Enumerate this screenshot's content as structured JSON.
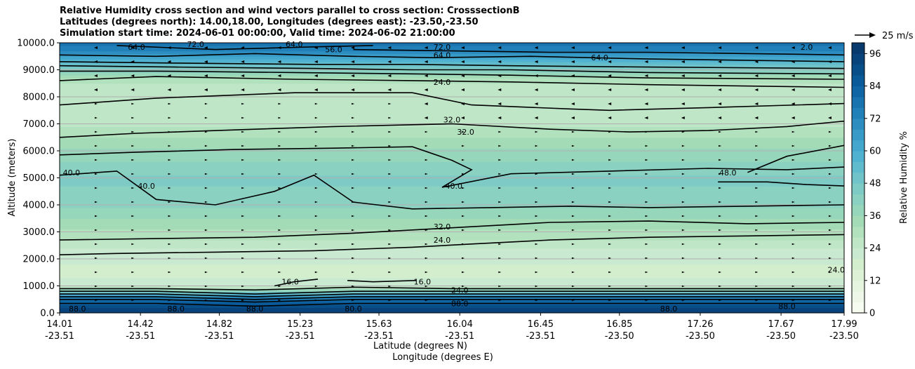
{
  "chart_data": {
    "type": "heatmap",
    "title_lines": [
      "Relative Humidity cross section and wind vectors parallel to cross section: CrosssectionB",
      "Latitudes (degrees north): 14.00,18.00, Longitudes (degrees east): -23.50,-23.50",
      "Simulation start time: 2024-06-01 00:00:00, Valid time: 2024-06-02 21:00:00"
    ],
    "ylabel": "Altitude (meters)",
    "xlabel_lat": "Latitude (degrees N)",
    "xlabel_lon": "Longitude (degrees E)",
    "ylim": [
      0,
      10000
    ],
    "yticks": [
      {
        "value": 0,
        "label": "0.0"
      },
      {
        "value": 1000,
        "label": "1000.0"
      },
      {
        "value": 2000,
        "label": "2000.0"
      },
      {
        "value": 3000,
        "label": "3000.0"
      },
      {
        "value": 4000,
        "label": "4000.0"
      },
      {
        "value": 5000,
        "label": "5000.0"
      },
      {
        "value": 6000,
        "label": "6000.0"
      },
      {
        "value": 7000,
        "label": "7000.0"
      },
      {
        "value": 8000,
        "label": "8000.0"
      },
      {
        "value": 9000,
        "label": "9000.0"
      },
      {
        "value": 10000,
        "label": "10000.0"
      }
    ],
    "xlim": [
      14.01,
      17.99
    ],
    "xticks": [
      {
        "lat": 14.01,
        "lat_label": "14.01",
        "lon_label": "-23.51"
      },
      {
        "lat": 14.42,
        "lat_label": "14.42",
        "lon_label": "-23.51"
      },
      {
        "lat": 14.82,
        "lat_label": "14.82",
        "lon_label": "-23.51"
      },
      {
        "lat": 15.23,
        "lat_label": "15.23",
        "lon_label": "-23.51"
      },
      {
        "lat": 15.63,
        "lat_label": "15.63",
        "lon_label": "-23.51"
      },
      {
        "lat": 16.04,
        "lat_label": "16.04",
        "lon_label": "-23.51"
      },
      {
        "lat": 16.45,
        "lat_label": "16.45",
        "lon_label": "-23.51"
      },
      {
        "lat": 16.85,
        "lat_label": "16.85",
        "lon_label": "-23.50"
      },
      {
        "lat": 17.26,
        "lat_label": "17.26",
        "lon_label": "-23.50"
      },
      {
        "lat": 17.67,
        "lat_label": "17.67",
        "lon_label": "-23.50"
      },
      {
        "lat": 17.99,
        "lat_label": "17.99",
        "lon_label": "-23.50"
      }
    ],
    "colorbar": {
      "label": "Relative Humidity %",
      "min": 0,
      "max": 100,
      "step": 4,
      "ticks": [
        {
          "value": 0,
          "label": "0"
        },
        {
          "value": 12,
          "label": "12"
        },
        {
          "value": 24,
          "label": "24"
        },
        {
          "value": 36,
          "label": "36"
        },
        {
          "value": 48,
          "label": "48"
        },
        {
          "value": 60,
          "label": "60"
        },
        {
          "value": 72,
          "label": "72"
        },
        {
          "value": 84,
          "label": "84"
        },
        {
          "value": 96,
          "label": "96"
        }
      ],
      "colors": [
        "#f7fcf0",
        "#eef8e8",
        "#e5f5df",
        "#dcf1d6",
        "#d3eecd",
        "#c9ead0",
        "#bfe6c6",
        "#b2e1be",
        "#a3dbb7",
        "#96d6bb",
        "#8bd1c2",
        "#7ecbc6",
        "#70c4c9",
        "#60bbcd",
        "#50b2d0",
        "#43a6cc",
        "#389ac6",
        "#2d8dc0",
        "#2280b9",
        "#1973af",
        "#1066a4",
        "#0a5a99",
        "#084f8a",
        "#08447b",
        "#083a6e"
      ]
    },
    "wind_key_label": "25 m/s",
    "contour_levels": [
      8,
      16,
      24,
      32,
      40,
      48,
      56,
      64,
      72,
      80,
      88,
      96
    ],
    "contours": [
      {
        "level": 24,
        "label": "24.0",
        "points": [
          [
            14.01,
            2150
          ],
          [
            14.3,
            2200
          ],
          [
            14.8,
            2250
          ],
          [
            15.3,
            2300
          ],
          [
            15.8,
            2430
          ],
          [
            16.1,
            2550
          ],
          [
            16.5,
            2700
          ],
          [
            17.0,
            2800
          ],
          [
            17.5,
            2850
          ],
          [
            17.99,
            2900
          ]
        ]
      },
      {
        "level": 32,
        "label": "32.0",
        "points": [
          [
            14.01,
            2700
          ],
          [
            14.5,
            2750
          ],
          [
            15.0,
            2800
          ],
          [
            15.5,
            2950
          ],
          [
            16.0,
            3150
          ],
          [
            16.5,
            3350
          ],
          [
            17.0,
            3400
          ],
          [
            17.5,
            3300
          ],
          [
            17.99,
            3350
          ]
        ]
      },
      {
        "level": 40,
        "label": "40.0",
        "points": [
          [
            14.01,
            5100
          ],
          [
            14.3,
            5250
          ],
          [
            14.5,
            4200
          ],
          [
            14.8,
            4000
          ],
          [
            15.1,
            4500
          ],
          [
            15.3,
            5100
          ],
          [
            15.5,
            4100
          ],
          [
            15.8,
            3850
          ],
          [
            16.2,
            3900
          ],
          [
            16.6,
            3950
          ],
          [
            17.0,
            3900
          ],
          [
            17.5,
            3950
          ],
          [
            17.99,
            4000
          ]
        ]
      },
      {
        "level": 40,
        "label": "40.0",
        "points": [
          [
            14.01,
            5850
          ],
          [
            14.4,
            5950
          ],
          [
            14.9,
            6050
          ],
          [
            15.4,
            6100
          ],
          [
            15.8,
            6150
          ],
          [
            16.0,
            5650
          ],
          [
            16.1,
            5300
          ],
          [
            15.95,
            4650
          ],
          [
            16.3,
            5150
          ],
          [
            16.8,
            5250
          ],
          [
            17.3,
            5350
          ],
          [
            17.7,
            5300
          ],
          [
            17.99,
            5400
          ]
        ]
      },
      {
        "level": 40,
        "label": "40.0",
        "points": [
          [
            17.35,
            4850
          ],
          [
            17.6,
            4850
          ],
          [
            17.8,
            4750
          ],
          [
            17.99,
            4700
          ]
        ]
      },
      {
        "level": 32,
        "label": "32.0",
        "points": [
          [
            14.01,
            6500
          ],
          [
            14.4,
            6650
          ],
          [
            15.0,
            6800
          ],
          [
            15.4,
            6900
          ],
          [
            16.0,
            7000
          ],
          [
            16.5,
            6800
          ],
          [
            16.9,
            6700
          ],
          [
            17.3,
            6750
          ],
          [
            17.7,
            6900
          ],
          [
            17.99,
            7100
          ]
        ]
      },
      {
        "level": 48,
        "label": "48.0",
        "points": [
          [
            17.5,
            5200
          ],
          [
            17.7,
            5800
          ],
          [
            17.99,
            6200
          ]
        ]
      },
      {
        "level": 32,
        "label": "32.0",
        "points": [
          [
            14.01,
            7700
          ],
          [
            14.5,
            7950
          ],
          [
            15.2,
            8150
          ],
          [
            15.8,
            8150
          ],
          [
            16.1,
            7700
          ],
          [
            16.6,
            7550
          ],
          [
            16.8,
            7500
          ],
          [
            17.3,
            7600
          ],
          [
            17.99,
            7750
          ]
        ]
      },
      {
        "level": 24,
        "label": "24.0",
        "points": [
          [
            14.01,
            8600
          ],
          [
            14.5,
            8750
          ],
          [
            15.2,
            8650
          ],
          [
            15.8,
            8600
          ],
          [
            16.3,
            8550
          ],
          [
            17.0,
            8450
          ],
          [
            17.99,
            8350
          ]
        ]
      },
      {
        "level": 32,
        "label": "32.0",
        "points": [
          [
            14.01,
            8950
          ],
          [
            14.5,
            8950
          ],
          [
            15.2,
            8900
          ],
          [
            15.8,
            8850
          ],
          [
            16.3,
            8800
          ],
          [
            17.0,
            8700
          ],
          [
            17.99,
            8650
          ]
        ]
      },
      {
        "level": 40,
        "label": "40.0",
        "points": [
          [
            14.01,
            9150
          ],
          [
            14.6,
            9100
          ],
          [
            15.3,
            9050
          ],
          [
            15.8,
            9000
          ],
          [
            16.3,
            9000
          ],
          [
            17.0,
            8900
          ],
          [
            17.99,
            8850
          ]
        ]
      },
      {
        "level": 48,
        "label": "48.0",
        "points": [
          [
            14.01,
            9300
          ],
          [
            14.6,
            9250
          ],
          [
            15.3,
            9200
          ],
          [
            15.8,
            9200
          ],
          [
            16.3,
            9150
          ],
          [
            17.0,
            9100
          ],
          [
            17.99,
            9050
          ]
        ]
      },
      {
        "level": 64,
        "label": "64.0",
        "points": [
          [
            14.01,
            9550
          ],
          [
            14.5,
            9500
          ],
          [
            15.0,
            9600
          ],
          [
            15.5,
            9500
          ],
          [
            15.9,
            9450
          ],
          [
            16.4,
            9500
          ],
          [
            17.0,
            9400
          ],
          [
            17.99,
            9300
          ]
        ]
      },
      {
        "level": 72,
        "label": "72.0",
        "points": [
          [
            15.5,
            9750
          ],
          [
            16.0,
            9700
          ],
          [
            16.5,
            9650
          ],
          [
            17.0,
            9650
          ],
          [
            17.5,
            9600
          ],
          [
            17.99,
            9550
          ]
        ]
      },
      {
        "level": 56,
        "label": "56.0",
        "points": [
          [
            14.3,
            9900
          ],
          [
            14.8,
            9750
          ],
          [
            15.3,
            9850
          ],
          [
            15.6,
            9900
          ]
        ]
      },
      {
        "level": 16,
        "label": "16.0",
        "points": [
          [
            15.47,
            1200
          ],
          [
            15.6,
            1150
          ],
          [
            15.82,
            1200
          ]
        ]
      },
      {
        "level": 16,
        "label": "16.0",
        "points": [
          [
            15.1,
            1000
          ],
          [
            15.2,
            1150
          ],
          [
            15.32,
            1250
          ]
        ]
      },
      {
        "level": 24,
        "label": "24.0",
        "points": [
          [
            14.01,
            900
          ],
          [
            14.5,
            900
          ],
          [
            15.0,
            850
          ],
          [
            15.5,
            950
          ],
          [
            16.0,
            900
          ],
          [
            16.5,
            900
          ],
          [
            17.0,
            900
          ],
          [
            17.99,
            900
          ]
        ]
      },
      {
        "level": 40,
        "label": "40.0",
        "points": [
          [
            14.01,
            800
          ],
          [
            14.5,
            800
          ],
          [
            15.0,
            700
          ],
          [
            15.5,
            800
          ],
          [
            16.0,
            800
          ],
          [
            16.5,
            800
          ],
          [
            17.0,
            800
          ],
          [
            17.99,
            800
          ]
        ]
      },
      {
        "level": 56,
        "label": "56.0",
        "points": [
          [
            14.01,
            700
          ],
          [
            14.5,
            700
          ],
          [
            15.0,
            600
          ],
          [
            15.5,
            700
          ],
          [
            16.0,
            700
          ],
          [
            16.5,
            700
          ],
          [
            17.0,
            700
          ],
          [
            17.99,
            700
          ]
        ]
      },
      {
        "level": 72,
        "label": "72.0",
        "points": [
          [
            14.01,
            600
          ],
          [
            14.5,
            600
          ],
          [
            15.0,
            500
          ],
          [
            15.5,
            600
          ],
          [
            16.0,
            600
          ],
          [
            16.5,
            600
          ],
          [
            17.0,
            600
          ],
          [
            17.99,
            600
          ]
        ]
      },
      {
        "level": 80,
        "label": "80.0",
        "points": [
          [
            14.01,
            500
          ],
          [
            14.5,
            500
          ],
          [
            15.0,
            400
          ],
          [
            15.5,
            500
          ],
          [
            16.0,
            500
          ],
          [
            16.5,
            500
          ],
          [
            17.0,
            500
          ],
          [
            17.99,
            500
          ]
        ]
      },
      {
        "level": 88,
        "label": "88.0",
        "points": [
          [
            14.01,
            350
          ],
          [
            14.5,
            350
          ],
          [
            15.0,
            250
          ],
          [
            15.5,
            350
          ],
          [
            16.0,
            350
          ],
          [
            16.5,
            350
          ],
          [
            17.0,
            350
          ],
          [
            17.99,
            350
          ]
        ]
      }
    ],
    "contour_labels": [
      {
        "text": "88.0",
        "lat": 14.1,
        "alt": 150
      },
      {
        "text": "88.0",
        "lat": 14.6,
        "alt": 150
      },
      {
        "text": "88.0",
        "lat": 15.0,
        "alt": 150
      },
      {
        "text": "16.0",
        "lat": 15.18,
        "alt": 1150
      },
      {
        "text": "80.0",
        "lat": 15.5,
        "alt": 150
      },
      {
        "text": "16.0",
        "lat": 15.85,
        "alt": 1150
      },
      {
        "text": "24.0",
        "lat": 16.04,
        "alt": 850
      },
      {
        "text": "88.0",
        "lat": 16.04,
        "alt": 350
      },
      {
        "text": "88.0",
        "lat": 17.1,
        "alt": 150
      },
      {
        "text": "88.0",
        "lat": 17.7,
        "alt": 250
      },
      {
        "text": "24.0",
        "lat": 15.95,
        "alt": 2700
      },
      {
        "text": "32.0",
        "lat": 15.95,
        "alt": 3200
      },
      {
        "text": "40.0",
        "lat": 14.07,
        "alt": 5200
      },
      {
        "text": "40.0",
        "lat": 14.45,
        "alt": 4700
      },
      {
        "text": "40.0",
        "lat": 16.01,
        "alt": 4700
      },
      {
        "text": "32.0",
        "lat": 16.0,
        "alt": 7150
      },
      {
        "text": "32.0",
        "lat": 16.07,
        "alt": 6700
      },
      {
        "text": "48.0",
        "lat": 17.4,
        "alt": 5200
      },
      {
        "text": "24.0",
        "lat": 17.95,
        "alt": 1600
      },
      {
        "text": "24.0",
        "lat": 15.95,
        "alt": 8550
      },
      {
        "text": "64.0",
        "lat": 15.95,
        "alt": 9550
      },
      {
        "text": "72.0",
        "lat": 15.95,
        "alt": 9850
      },
      {
        "text": "64.0",
        "lat": 16.75,
        "alt": 9450
      },
      {
        "text": "64.0",
        "lat": 14.4,
        "alt": 9850
      },
      {
        "text": "72.0",
        "lat": 14.7,
        "alt": 9950
      },
      {
        "text": "56.0",
        "lat": 15.4,
        "alt": 9750
      },
      {
        "text": "64.0",
        "lat": 15.2,
        "alt": 9950
      },
      {
        "text": "2.0",
        "lat": 17.8,
        "alt": 9850
      }
    ],
    "rh_profile": [
      {
        "alt": 0,
        "rh": 94
      },
      {
        "alt": 200,
        "rh": 92
      },
      {
        "alt": 400,
        "rh": 86
      },
      {
        "alt": 600,
        "rh": 70
      },
      {
        "alt": 800,
        "rh": 45
      },
      {
        "alt": 1000,
        "rh": 22
      },
      {
        "alt": 1500,
        "rh": 18
      },
      {
        "alt": 2000,
        "rh": 21
      },
      {
        "alt": 2500,
        "rh": 25
      },
      {
        "alt": 3000,
        "rh": 31
      },
      {
        "alt": 3500,
        "rh": 36
      },
      {
        "alt": 4000,
        "rh": 41
      },
      {
        "alt": 5000,
        "rh": 45
      },
      {
        "alt": 6000,
        "rh": 37
      },
      {
        "alt": 7000,
        "rh": 27
      },
      {
        "alt": 8000,
        "rh": 24
      },
      {
        "alt": 8600,
        "rh": 29
      },
      {
        "alt": 9000,
        "rh": 42
      },
      {
        "alt": 9400,
        "rh": 60
      },
      {
        "alt": 9800,
        "rh": 74
      },
      {
        "alt": 10000,
        "rh": 80
      }
    ]
  }
}
